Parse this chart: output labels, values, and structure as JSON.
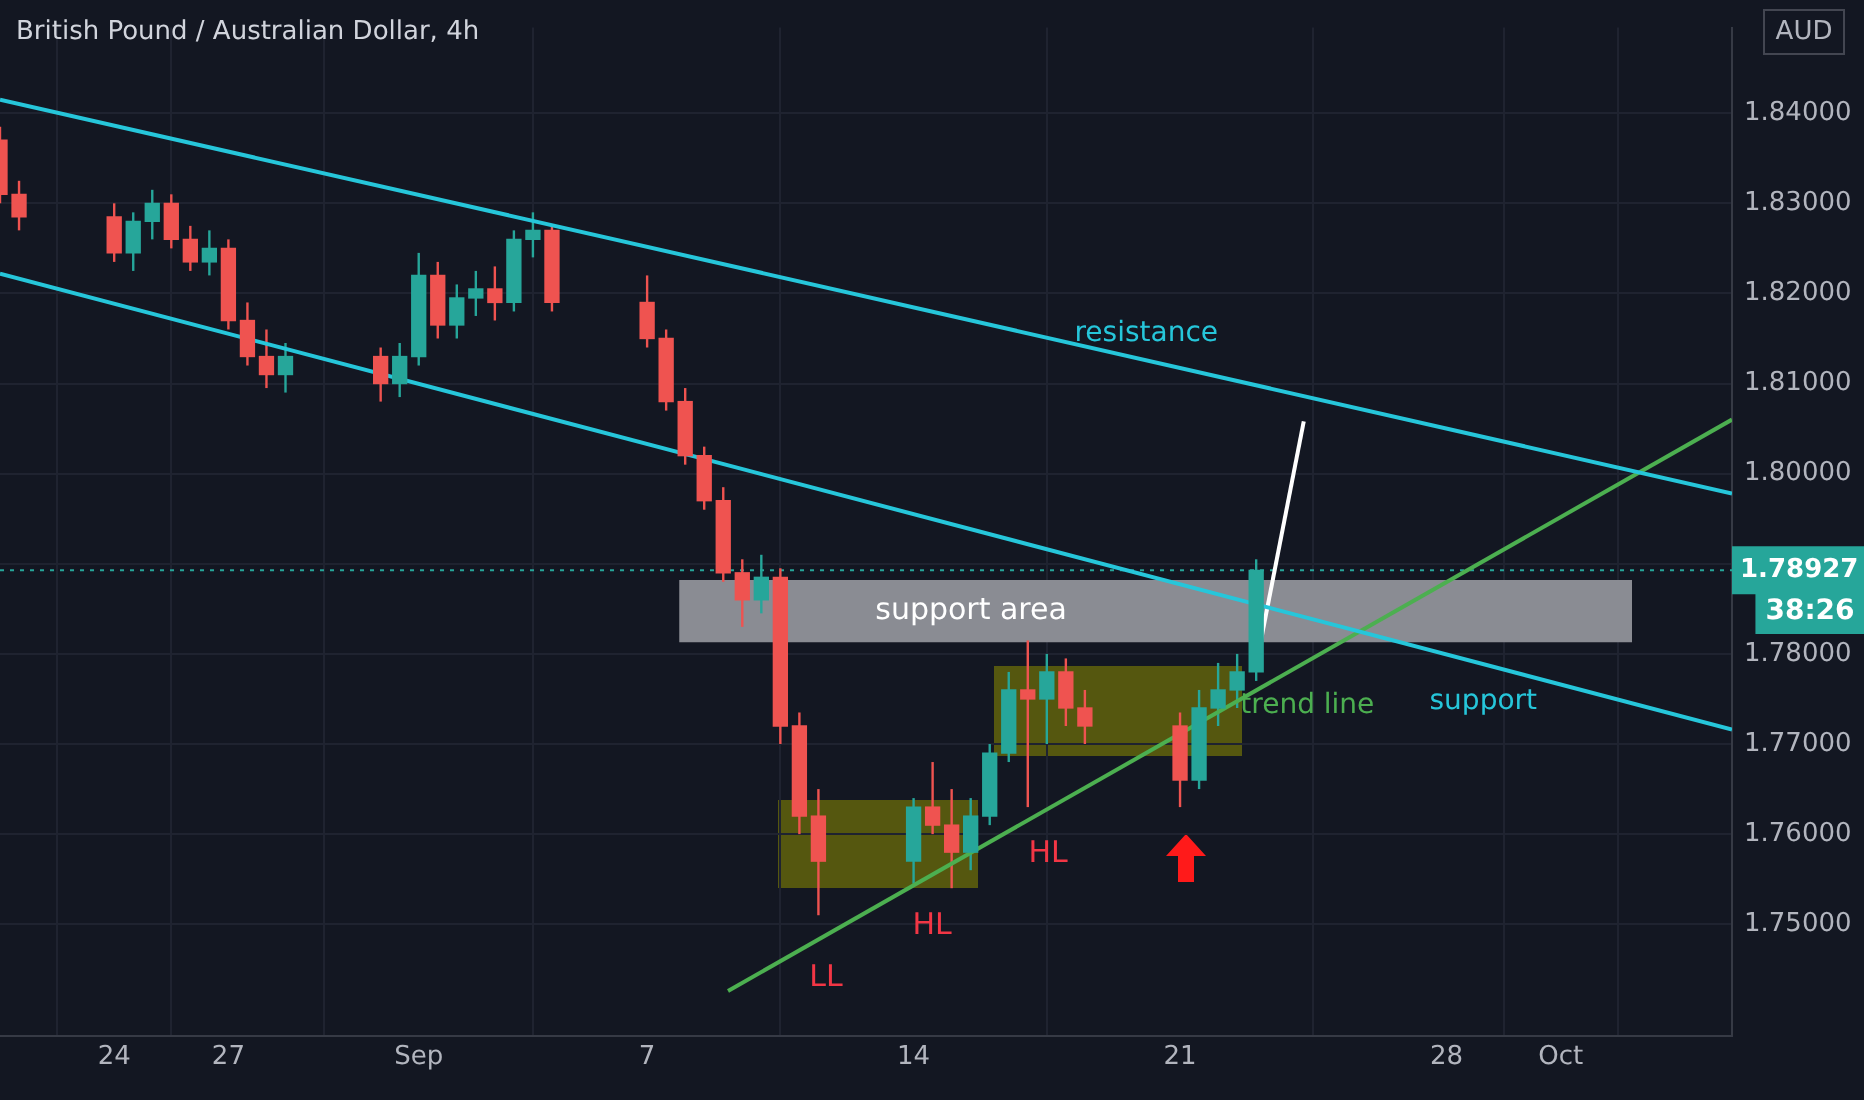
{
  "chart_data": {
    "type": "candlestick",
    "title": "British Pound / Australian Dollar, 4h",
    "x": [
      "--08-21T00:00",
      "--08-21T12:00",
      "--08-24T00:00",
      "--08-24T12:00",
      "--08-25T00:00",
      "--08-25T12:00",
      "--08-26T00:00",
      "--08-26T12:00",
      "--08-27T00:00",
      "--08-27T12:00",
      "--08-28T00:00",
      "--08-28T12:00",
      "--08-31T00:00",
      "--08-31T12:00",
      "--09-01T00:00",
      "--09-01T12:00",
      "--09-02T00:00",
      "--09-02T12:00",
      "--09-03T00:00",
      "--09-03T12:00",
      "--09-04T00:00",
      "--09-04T12:00",
      "--09-07T00:00",
      "--09-07T12:00",
      "--09-08T00:00",
      "--09-08T12:00",
      "--09-09T00:00",
      "--09-09T12:00",
      "--09-10T00:00",
      "--09-10T12:00",
      "--09-11T00:00",
      "--09-11T12:00",
      "--09-14T00:00",
      "--09-14T12:00",
      "--09-15T00:00",
      "--09-15T12:00",
      "--09-16T00:00",
      "--09-16T12:00",
      "--09-17T00:00",
      "--09-17T12:00",
      "--09-18T00:00",
      "--09-18T12:00",
      "--09-21T00:00",
      "--09-21T12:00",
      "--09-22T00:00",
      "--09-22T12:00",
      "--09-23T00:00"
    ],
    "ohlc": [
      [
        1.837,
        1.8385,
        1.83,
        1.831
      ],
      [
        1.831,
        1.8325,
        1.827,
        1.8285
      ],
      [
        1.8285,
        1.83,
        1.8235,
        1.8245
      ],
      [
        1.8245,
        1.829,
        1.8225,
        1.828
      ],
      [
        1.828,
        1.8315,
        1.826,
        1.83
      ],
      [
        1.83,
        1.831,
        1.825,
        1.826
      ],
      [
        1.826,
        1.8275,
        1.8225,
        1.8235
      ],
      [
        1.8235,
        1.827,
        1.822,
        1.825
      ],
      [
        1.825,
        1.826,
        1.816,
        1.817
      ],
      [
        1.817,
        1.819,
        1.812,
        1.813
      ],
      [
        1.813,
        1.816,
        1.8095,
        1.811
      ],
      [
        1.811,
        1.8145,
        1.809,
        1.813
      ],
      [
        1.813,
        1.814,
        1.808,
        1.81
      ],
      [
        1.81,
        1.8145,
        1.8085,
        1.813
      ],
      [
        1.813,
        1.8245,
        1.812,
        1.822
      ],
      [
        1.822,
        1.8235,
        1.815,
        1.8165
      ],
      [
        1.8165,
        1.821,
        1.815,
        1.8195
      ],
      [
        1.8195,
        1.8225,
        1.8175,
        1.8205
      ],
      [
        1.8205,
        1.823,
        1.817,
        1.819
      ],
      [
        1.819,
        1.827,
        1.818,
        1.826
      ],
      [
        1.826,
        1.829,
        1.824,
        1.827
      ],
      [
        1.827,
        1.8275,
        1.818,
        1.819
      ],
      [
        1.819,
        1.822,
        1.814,
        1.815
      ],
      [
        1.815,
        1.816,
        1.807,
        1.808
      ],
      [
        1.808,
        1.8095,
        1.801,
        1.802
      ],
      [
        1.802,
        1.803,
        1.796,
        1.797
      ],
      [
        1.797,
        1.7985,
        1.788,
        1.789
      ],
      [
        1.789,
        1.7905,
        1.783,
        1.786
      ],
      [
        1.786,
        1.791,
        1.7845,
        1.7885
      ],
      [
        1.7885,
        1.7895,
        1.77,
        1.772
      ],
      [
        1.772,
        1.7735,
        1.76,
        1.762
      ],
      [
        1.762,
        1.765,
        1.751,
        1.757
      ],
      [
        1.757,
        1.764,
        1.7545,
        1.763
      ],
      [
        1.763,
        1.768,
        1.76,
        1.761
      ],
      [
        1.761,
        1.765,
        1.754,
        1.758
      ],
      [
        1.758,
        1.764,
        1.756,
        1.762
      ],
      [
        1.762,
        1.77,
        1.761,
        1.769
      ],
      [
        1.769,
        1.778,
        1.768,
        1.776
      ],
      [
        1.776,
        1.7815,
        1.763,
        1.775
      ],
      [
        1.775,
        1.78,
        1.77,
        1.778
      ],
      [
        1.778,
        1.7795,
        1.772,
        1.774
      ],
      [
        1.774,
        1.776,
        1.77,
        1.772
      ],
      [
        1.772,
        1.7735,
        1.763,
        1.766
      ],
      [
        1.766,
        1.776,
        1.765,
        1.774
      ],
      [
        1.774,
        1.779,
        1.772,
        1.776
      ],
      [
        1.776,
        1.78,
        1.774,
        1.778
      ],
      [
        1.778,
        1.7905,
        1.777,
        1.78927
      ]
    ],
    "series": [
      {
        "name": "resistance",
        "type": "line",
        "color": "#26c6da",
        "x": [
          "--08-21T00:00",
          "--10-05T12:00"
        ],
        "values": [
          1.8415,
          1.7978
        ]
      },
      {
        "name": "support",
        "type": "line",
        "color": "#26c6da",
        "x": [
          "--08-21T00:00",
          "--10-05T12:00"
        ],
        "values": [
          1.8222,
          1.7716
        ]
      },
      {
        "name": "trend line",
        "type": "line",
        "color": "#4caf50",
        "x": [
          "--09-09T03:00",
          "--10-05T12:00"
        ],
        "values": [
          1.7426,
          1.806
        ]
      },
      {
        "type": "line",
        "color": "#ffffff",
        "x": [
          "--09-23T02:00",
          "--09-24T06:00"
        ],
        "values": [
          1.7806,
          1.8058
        ]
      }
    ],
    "bands": [
      {
        "axis": "y",
        "from": 1.7813,
        "to": 1.7882,
        "label": "support area",
        "color": "#8a8c93"
      }
    ],
    "ref_lines": [
      {
        "axis": "y",
        "value": 1.78927,
        "label": "1.78927",
        "color": "#26a69a",
        "line_style": "dotted"
      }
    ],
    "annotations": [
      "AUD",
      "38:26",
      "LL",
      "HL",
      "HL"
    ],
    "xlim": [
      "--08-21T00:00",
      "--10-05T12:00"
    ],
    "xticks": [
      {
        "value": "--08-24",
        "label": "24"
      },
      {
        "value": "--08-27",
        "label": "27"
      },
      {
        "value": "--09-01",
        "label": "Sep"
      },
      {
        "value": "--09-07",
        "label": "7"
      },
      {
        "value": "--09-14",
        "label": "14"
      },
      {
        "value": "--09-21",
        "label": "21"
      },
      {
        "value": "--09-28",
        "label": "28"
      },
      {
        "value": "--10-01",
        "label": "Oct"
      }
    ],
    "ylim": [
      1.7376,
      1.8495
    ],
    "yticks": [
      {
        "value": 1.75,
        "label": "1.75000"
      },
      {
        "value": 1.76,
        "label": "1.76000"
      },
      {
        "value": 1.77,
        "label": "1.77000"
      },
      {
        "value": 1.78,
        "label": "1.78000"
      },
      {
        "value": 1.79,
        "label": null
      },
      {
        "value": 1.8,
        "label": "1.80000"
      },
      {
        "value": 1.81,
        "label": "1.81000"
      },
      {
        "value": 1.82,
        "label": "1.82000"
      },
      {
        "value": 1.83,
        "label": "1.83000"
      },
      {
        "value": 1.84,
        "label": "1.84000"
      }
    ],
    "grid": true,
    "legend": false
  }
}
